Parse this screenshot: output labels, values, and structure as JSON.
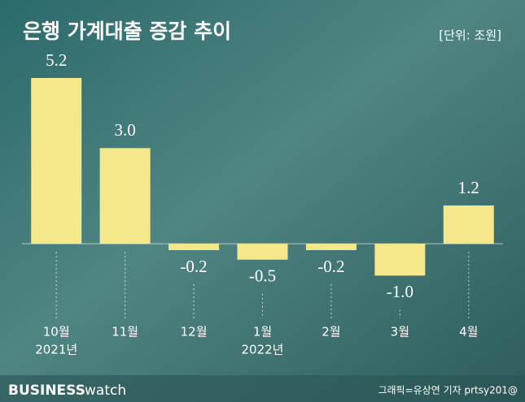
{
  "chart_data": {
    "type": "bar",
    "title": "은행 가계대출 증감 추이",
    "unit_label": "[단위: 조원]",
    "categories": [
      "10월",
      "11월",
      "12월",
      "1월",
      "2월",
      "3월",
      "4월"
    ],
    "category_sublabels": [
      "2021년",
      null,
      null,
      "2022년",
      null,
      null,
      null
    ],
    "values": [
      5.2,
      3.0,
      -0.2,
      -0.5,
      -0.2,
      -1.0,
      1.2
    ],
    "value_labels": [
      "5.2",
      "3.0",
      "-0.2",
      "-0.5",
      "-0.2",
      "-1.0",
      "1.2"
    ],
    "color": "#f4e88a",
    "ylim": [
      -1.5,
      5.2
    ],
    "brand": "BUSINESS",
    "brand_suffix": "watch",
    "credit": "그래픽=유상연 기자 prtsy201@"
  }
}
